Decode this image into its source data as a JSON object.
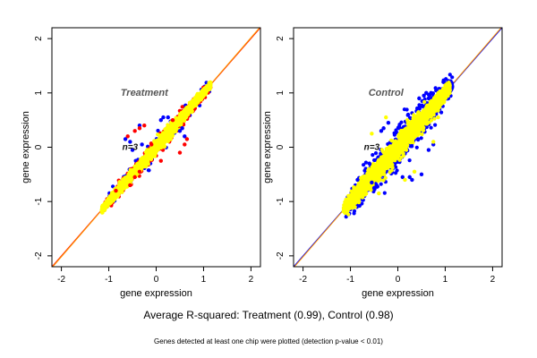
{
  "chart_data": [
    {
      "type": "scatter",
      "title": "Treatment",
      "annotation": "n=3",
      "xlabel": "gene expression",
      "ylabel": "gene expression",
      "xlim": [
        -2.2,
        2.2
      ],
      "ylim": [
        -2.2,
        2.2
      ],
      "x_ticks": [
        -2,
        -1,
        0,
        1,
        2
      ],
      "y_ticks": [
        -2,
        -1,
        0,
        1,
        2
      ],
      "reference_lines": [
        {
          "color": "#ff2200",
          "from": [
            -2.2,
            -2.2
          ],
          "to": [
            2.2,
            2.2
          ]
        },
        {
          "color": "#ff9900",
          "from": [
            -2.2,
            -2.22
          ],
          "to": [
            2.2,
            2.22
          ]
        }
      ],
      "series": [
        {
          "color": "#0000ff",
          "range": [
            -1.05,
            1.15
          ],
          "spread": 0.1,
          "n": 160
        },
        {
          "color": "#ff0000",
          "range": [
            -1.1,
            1.15
          ],
          "spread": 0.08,
          "n": 600
        },
        {
          "color": "#ffff00",
          "range": [
            -1.15,
            1.15
          ],
          "spread": 0.055,
          "n": 2200
        }
      ],
      "outliers": [
        {
          "color": "#0000ff",
          "points": [
            [
              0.15,
              0.55
            ],
            [
              0.1,
              0.5
            ],
            [
              0.25,
              0.55
            ],
            [
              -0.3,
              0.05
            ],
            [
              -0.55,
              0.1
            ],
            [
              -0.5,
              -0.05
            ],
            [
              0.5,
              0.3
            ],
            [
              0.55,
              0.35
            ],
            [
              0.6,
              0.2
            ],
            [
              -0.35,
              0.4
            ],
            [
              -0.65,
              0.15
            ]
          ]
        },
        {
          "color": "#ff0000",
          "points": [
            [
              -0.35,
              0.35
            ],
            [
              -0.25,
              0.4
            ],
            [
              -0.45,
              0.3
            ],
            [
              -0.6,
              0.2
            ],
            [
              0.35,
              0.5
            ],
            [
              0.6,
              0.05
            ],
            [
              0.65,
              0.15
            ],
            [
              0.5,
              -0.1
            ],
            [
              -0.35,
              -0.45
            ],
            [
              -0.45,
              -0.55
            ],
            [
              -0.55,
              -0.7
            ],
            [
              -0.1,
              0.05
            ],
            [
              0.1,
              -0.25
            ],
            [
              -0.85,
              -0.8
            ]
          ]
        }
      ]
    },
    {
      "type": "scatter",
      "title": "Control",
      "annotation": "n=3",
      "xlabel": "gene expression",
      "ylabel": "gene expression",
      "xlim": [
        -2.2,
        2.2
      ],
      "ylim": [
        -2.2,
        2.2
      ],
      "x_ticks": [
        -2,
        -1,
        0,
        1,
        2
      ],
      "y_ticks": [
        -2,
        -1,
        0,
        1,
        2
      ],
      "reference_lines": [
        {
          "color": "#0000ff",
          "from": [
            -2.2,
            -2.2
          ],
          "to": [
            2.2,
            2.2
          ]
        },
        {
          "color": "#ff9900",
          "from": [
            -2.2,
            -2.22
          ],
          "to": [
            2.2,
            2.22
          ]
        }
      ],
      "series": [
        {
          "color": "#ff0000",
          "range": [
            -1.1,
            0.5
          ],
          "spread": 0.05,
          "n": 120
        },
        {
          "color": "#0000ff",
          "range": [
            -1.1,
            1.15
          ],
          "spread": 0.17,
          "n": 900
        },
        {
          "color": "#ffff00",
          "range": [
            -1.15,
            1.1
          ],
          "spread": 0.1,
          "n": 2400
        }
      ],
      "outliers": [
        {
          "color": "#0000ff",
          "points": [
            [
              0.55,
              0.95
            ],
            [
              0.6,
              1.0
            ],
            [
              0.45,
              0.9
            ],
            [
              0.7,
              1.0
            ],
            [
              0.65,
              0.9
            ],
            [
              -0.3,
              0.35
            ],
            [
              -0.35,
              0.3
            ],
            [
              0.25,
              -0.55
            ],
            [
              0.3,
              -0.6
            ],
            [
              0.5,
              -0.5
            ],
            [
              -0.55,
              -0.65
            ],
            [
              -0.45,
              -0.7
            ],
            [
              -0.5,
              -0.75
            ],
            [
              0.1,
              -0.55
            ],
            [
              -0.2,
              0.45
            ],
            [
              0.75,
              0.05
            ],
            [
              0.65,
              -0.05
            ],
            [
              -0.85,
              -0.6
            ],
            [
              -0.6,
              -0.3
            ]
          ]
        },
        {
          "color": "#ffff00",
          "points": [
            [
              0.2,
              0.5
            ],
            [
              0.45,
              0.25
            ],
            [
              -0.7,
              -0.55
            ],
            [
              0.75,
              0.1
            ],
            [
              -0.25,
              0.55
            ],
            [
              -0.4,
              -0.85
            ],
            [
              0.35,
              -0.45
            ],
            [
              0.15,
              -0.6
            ],
            [
              -0.55,
              0.25
            ],
            [
              0.85,
              0.55
            ]
          ]
        }
      ]
    }
  ],
  "footer": {
    "main": "Average R-squared: Treatment (0.99), Control (0.98)",
    "sub": "Genes detected at least one chip were plotted (detection p-value < 0.01)"
  }
}
